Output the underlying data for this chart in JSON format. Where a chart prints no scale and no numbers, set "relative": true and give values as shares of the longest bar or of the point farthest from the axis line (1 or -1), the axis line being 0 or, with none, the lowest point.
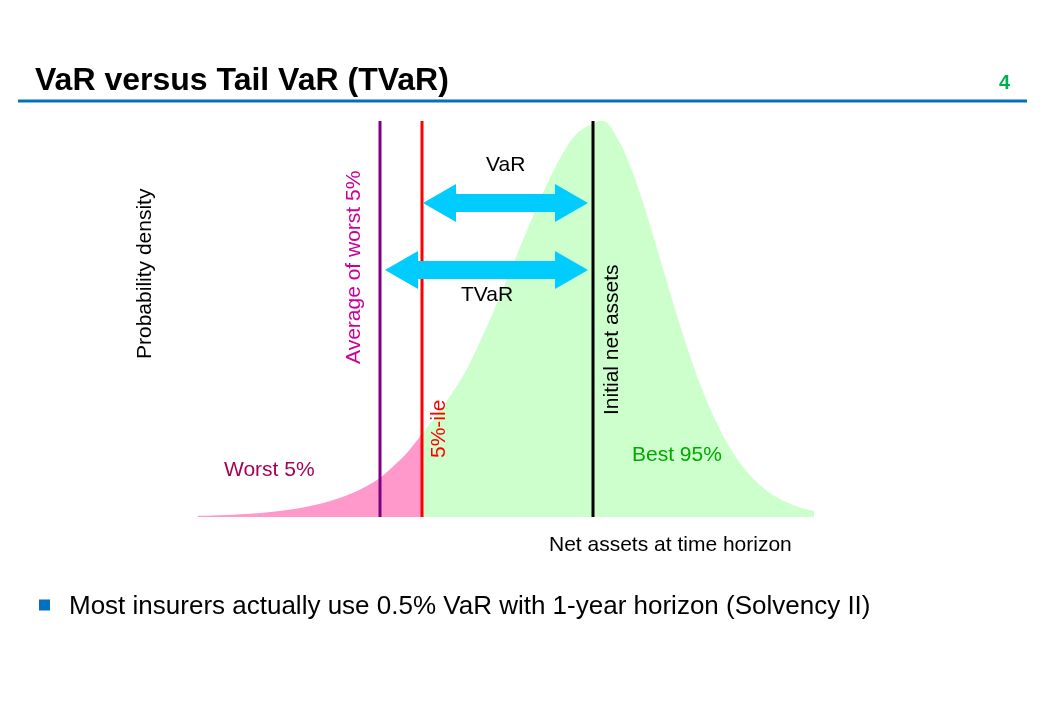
{
  "chart_data": {
    "type": "area",
    "title": "VaR versus Tail VaR (TVaR)",
    "xlabel": "Net assets at time horizon",
    "ylabel": "Probability density",
    "relative": true,
    "categories": [
      null,
      null,
      null,
      null,
      null,
      null,
      null,
      null,
      null,
      null,
      null,
      null,
      null,
      null,
      null,
      null,
      null,
      null,
      null,
      null,
      null,
      null,
      null,
      null,
      null,
      null,
      null,
      null,
      null,
      null,
      null,
      null,
      null,
      null,
      null,
      null,
      null,
      null,
      null,
      null,
      null,
      null,
      null,
      null,
      null
    ],
    "series": [
      {
        "name": "Worst 5%",
        "color": "#ff99cc",
        "values": [
          0.003,
          0.004,
          0.005,
          0.007,
          0.009,
          0.012,
          0.016,
          0.021,
          0.028,
          0.036,
          0.047,
          0.06,
          0.077,
          0.099,
          0.13,
          0.165,
          0.21,
          null,
          null,
          null,
          null,
          null,
          null,
          null,
          null,
          null,
          null,
          null,
          null,
          null,
          null,
          null,
          null,
          null,
          null,
          null,
          null,
          null,
          null,
          null,
          null,
          null,
          null,
          null,
          null
        ]
      },
      {
        "name": "Best 95%",
        "color": "#ccffcc",
        "values": [
          null,
          null,
          null,
          null,
          null,
          null,
          null,
          null,
          null,
          null,
          null,
          null,
          null,
          null,
          null,
          null,
          0.21,
          0.255,
          0.305,
          0.361,
          0.432,
          0.51,
          0.594,
          0.681,
          0.766,
          0.846,
          0.915,
          0.966,
          0.99,
          1,
          0.954,
          0.875,
          0.77,
          0.653,
          0.534,
          0.422,
          0.323,
          0.241,
          0.174,
          0.123,
          0.085,
          0.057,
          0.038,
          0.024,
          0.015
        ]
      }
    ],
    "annotations": [
      "4",
      "Average of worst 5%",
      "VaR",
      "TVaR",
      "5%-ile",
      "Initial net assets",
      "Most insurers actually use 0.5% VaR with 1-year horizon (Solvency II)"
    ]
  }
}
